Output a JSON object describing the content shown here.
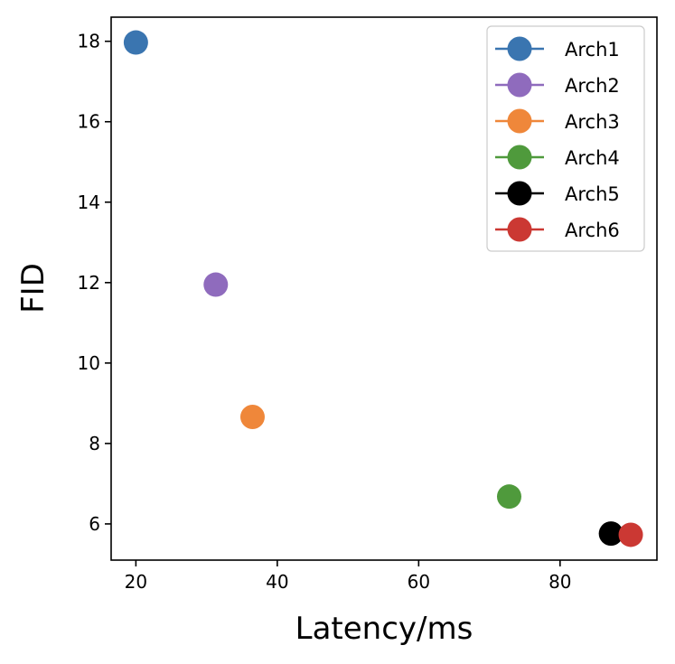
{
  "chart_data": {
    "type": "scatter",
    "title": "",
    "xlabel": "Latency/ms",
    "ylabel": "FID",
    "xlim": [
      16.5,
      93.7
    ],
    "ylim": [
      5.1,
      18.6
    ],
    "xticks": [
      20,
      40,
      60,
      80
    ],
    "yticks": [
      6,
      8,
      10,
      12,
      14,
      16,
      18
    ],
    "grid": false,
    "legend_position": "top-right",
    "series": [
      {
        "name": "Arch1",
        "color": "#3a75b0",
        "x": [
          20.0
        ],
        "y": [
          17.97
        ]
      },
      {
        "name": "Arch2",
        "color": "#8f6bbd",
        "x": [
          31.3
        ],
        "y": [
          11.95
        ]
      },
      {
        "name": "Arch3",
        "color": "#ef873a",
        "x": [
          36.5
        ],
        "y": [
          8.66
        ]
      },
      {
        "name": "Arch4",
        "color": "#4f9a3c",
        "x": [
          72.8
        ],
        "y": [
          6.68
        ]
      },
      {
        "name": "Arch5",
        "color": "#000000",
        "x": [
          87.2
        ],
        "y": [
          5.76
        ]
      },
      {
        "name": "Arch6",
        "color": "#cb3833",
        "x": [
          90.0
        ],
        "y": [
          5.73
        ]
      }
    ]
  }
}
